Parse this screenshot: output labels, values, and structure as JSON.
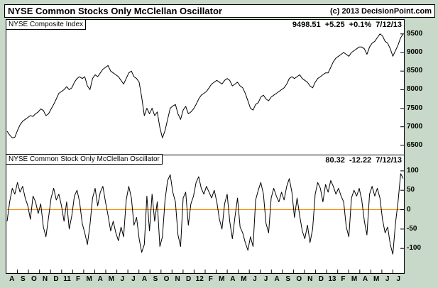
{
  "header": {
    "title": "NYSE Common Stocks Only McClellan Oscillator",
    "copyright": "(c) 2013 DecisionPoint.com"
  },
  "panels": {
    "price": {
      "label": "NYSE Composite Index",
      "quote": "9498.51  +5.25  +0.1%  7/12/13"
    },
    "oscillator": {
      "label": "NYSE Common Stock Only McClellan Oscillator",
      "quote": "80.32  -12.22  7/12/13"
    }
  },
  "colors": {
    "background": "#C9D9C9",
    "title_bar": "#FFFFFF",
    "plot_bg": "#FFFFFF",
    "border": "#000000",
    "line": "#000000",
    "zero_line": "#FF8A00",
    "text": "#000000"
  },
  "x_axis": {
    "note": "monthly labels Aug 2010 - Jul 2013, years shown as 11/12/13"
  },
  "chart_data": [
    {
      "type": "line",
      "title": "NYSE Composite Index",
      "last": 9498.51,
      "change": 5.25,
      "change_pct": 0.1,
      "date": "7/12/13",
      "ylim": [
        6250,
        9860
      ],
      "yticks": [
        9500,
        9000,
        8500,
        8000,
        7500,
        7000,
        6500
      ],
      "categories": [
        "A",
        "S",
        "O",
        "N",
        "D",
        "11",
        "F",
        "M",
        "A",
        "M",
        "J",
        "J",
        "A",
        "S",
        "O",
        "N",
        "D",
        "12",
        "F",
        "M",
        "A",
        "M",
        "J",
        "J",
        "A",
        "S",
        "O",
        "N",
        "D",
        "13",
        "F",
        "M",
        "A",
        "M",
        "J",
        "J"
      ],
      "values": [
        6880,
        6780,
        6700,
        6720,
        6900,
        7050,
        7150,
        7200,
        7250,
        7300,
        7280,
        7350,
        7400,
        7480,
        7440,
        7300,
        7350,
        7480,
        7600,
        7750,
        7900,
        7950,
        8000,
        8080,
        8000,
        8050,
        8200,
        8300,
        8350,
        8300,
        8350,
        8100,
        8000,
        8300,
        8400,
        8350,
        8450,
        8550,
        8600,
        8650,
        8500,
        8450,
        8400,
        8350,
        8250,
        8150,
        8300,
        8450,
        8500,
        8350,
        8300,
        8200,
        7800,
        7300,
        7500,
        7350,
        7500,
        7300,
        7400,
        6980,
        6700,
        6900,
        7200,
        7500,
        7560,
        7600,
        7350,
        7200,
        7450,
        7550,
        7350,
        7400,
        7480,
        7600,
        7750,
        7850,
        7900,
        7950,
        8050,
        8150,
        8200,
        8250,
        8200,
        8150,
        8250,
        8300,
        8250,
        8100,
        8150,
        8200,
        8100,
        8050,
        7900,
        7700,
        7500,
        7450,
        7600,
        7650,
        7800,
        7850,
        7750,
        7700,
        7800,
        7850,
        7900,
        7950,
        8000,
        8050,
        8150,
        8300,
        8350,
        8300,
        8350,
        8400,
        8300,
        8250,
        8200,
        8100,
        8050,
        8200,
        8300,
        8350,
        8400,
        8450,
        8450,
        8600,
        8750,
        8850,
        8900,
        8950,
        9000,
        8950,
        8900,
        9000,
        9050,
        9100,
        9150,
        9150,
        9100,
        8950,
        9150,
        9250,
        9300,
        9400,
        9500,
        9450,
        9300,
        9250,
        9100,
        8900,
        9050,
        9200,
        9400,
        9498.51
      ]
    },
    {
      "type": "line",
      "title": "NYSE Common Stock Only McClellan Oscillator",
      "last": 80.32,
      "change": -12.22,
      "date": "7/12/13",
      "ylim": [
        -160,
        140
      ],
      "yticks": [
        100,
        50,
        0,
        -50,
        -100
      ],
      "zero_line": true,
      "values": [
        -30,
        20,
        55,
        40,
        70,
        45,
        60,
        30,
        10,
        -25,
        35,
        20,
        -10,
        15,
        -45,
        -70,
        -20,
        30,
        55,
        25,
        40,
        10,
        -30,
        20,
        -50,
        -15,
        35,
        50,
        20,
        -35,
        -60,
        -90,
        -40,
        30,
        55,
        10,
        45,
        60,
        20,
        -15,
        -55,
        -30,
        -60,
        -80,
        -45,
        -70,
        25,
        60,
        30,
        -40,
        -20,
        -75,
        -110,
        -90,
        35,
        -55,
        40,
        -30,
        20,
        -95,
        -70,
        25,
        75,
        90,
        45,
        20,
        -65,
        -95,
        30,
        45,
        -40,
        15,
        35,
        70,
        85,
        55,
        40,
        60,
        45,
        30,
        50,
        20,
        -25,
        -50,
        15,
        40,
        -30,
        -75,
        -20,
        30,
        -45,
        -60,
        -85,
        -105,
        -70,
        -95,
        25,
        50,
        70,
        40,
        -35,
        -60,
        30,
        55,
        35,
        20,
        45,
        25,
        60,
        80,
        45,
        -20,
        30,
        -15,
        -55,
        -75,
        -40,
        -85,
        -50,
        40,
        70,
        55,
        20,
        65,
        45,
        75,
        60,
        40,
        55,
        35,
        20,
        -45,
        -70,
        30,
        50,
        35,
        55,
        25,
        -30,
        -65,
        40,
        60,
        35,
        55,
        30,
        -25,
        -60,
        -45,
        -90,
        -115,
        -35,
        20,
        92.54,
        80.32
      ]
    }
  ]
}
